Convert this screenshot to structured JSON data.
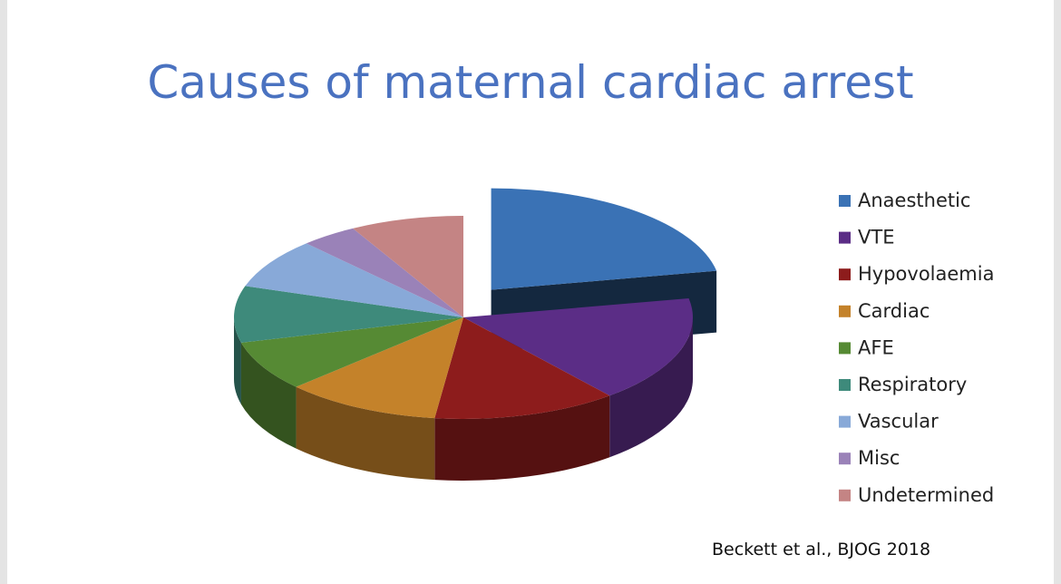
{
  "chart_data": {
    "type": "pie",
    "title": "Causes of maternal cardiac arrest",
    "categories": [
      "Anaesthetic",
      "VTE",
      "Hypovolaemia",
      "Cardiac",
      "AFE",
      "Respiratory",
      "Vascular",
      "Misc",
      "Undetermined"
    ],
    "values": [
      22,
      17,
      13,
      11,
      8,
      9,
      8,
      4,
      8
    ],
    "colors": [
      "#3a72b5",
      "#5b2d86",
      "#8d1c1c",
      "#c4822a",
      "#568a34",
      "#3e8a7b",
      "#88a9d8",
      "#9a82b8",
      "#c48484"
    ],
    "legend": "right",
    "source": "Beckett et al., BJOG 2018"
  }
}
